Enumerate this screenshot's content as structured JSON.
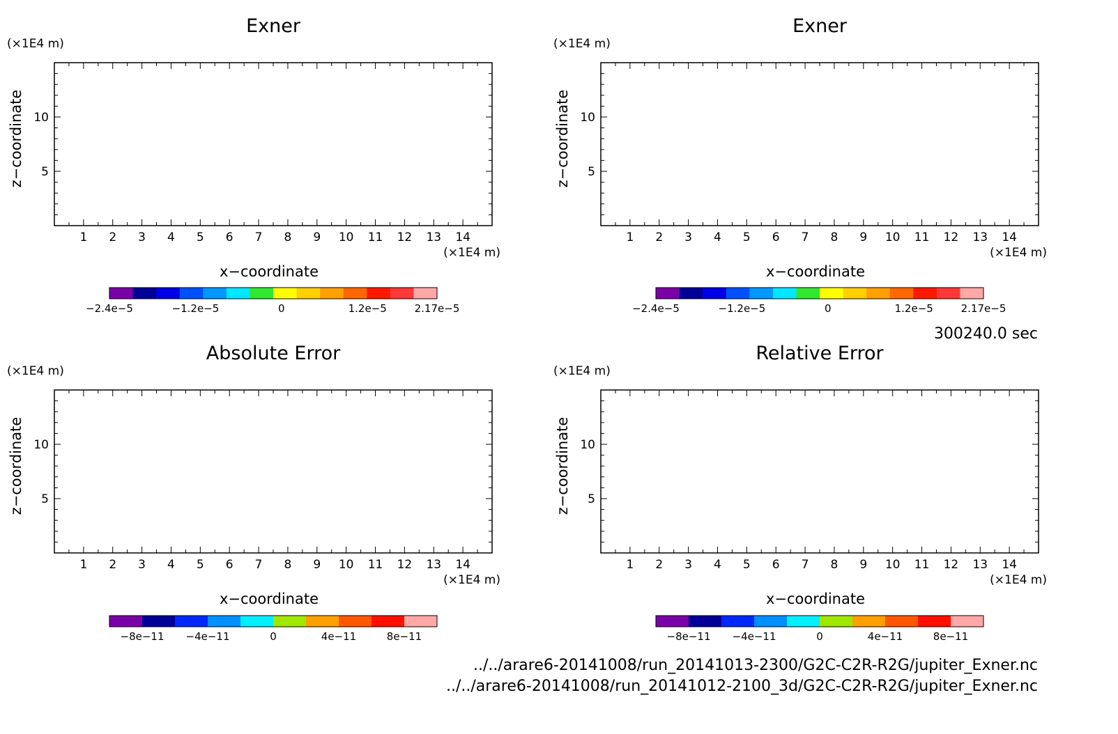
{
  "figure": {
    "time_label": "300240.0 sec",
    "files": [
      "../../arare6-20141008/run_20141013-2300/G2C-C2R-R2G/jupiter_Exner.nc",
      "../../arare6-20141008/run_20141012-2100_3d/G2C-C2R-R2G/jupiter_Exner.nc"
    ]
  },
  "chart_data": [
    {
      "type": "heatmap",
      "title": "Exner",
      "xlabel": "x−coordinate",
      "ylabel": "z−coordinate",
      "x_unit": "(×1E4 m)",
      "y_unit": "(×1E4 m)",
      "xlim": [
        0,
        15
      ],
      "ylim": [
        0,
        15
      ],
      "x_ticks": [
        1,
        2,
        3,
        4,
        5,
        6,
        7,
        8,
        9,
        10,
        11,
        12,
        13,
        14
      ],
      "y_ticks": [
        5,
        10
      ],
      "filled": true,
      "colorbar": {
        "colors": [
          "#7a00a8",
          "#000098",
          "#0000e8",
          "#0050ff",
          "#0098ff",
          "#00e8ff",
          "#30e830",
          "#ffff00",
          "#ffd000",
          "#ffa000",
          "#ff6800",
          "#ff1800",
          "#ff3838",
          "#ffa8a8"
        ],
        "tick_labels": [
          "−2.4e−5",
          "−1.2e−5",
          "0",
          "1.2e−5",
          "2.17e−5"
        ],
        "tick_values": [
          -2.4e-05,
          -1.2e-05,
          0,
          1.2e-05,
          2.17e-05
        ],
        "range": [
          -2.4e-05,
          2.17e-05
        ]
      }
    },
    {
      "type": "heatmap",
      "title": "Exner",
      "xlabel": "x−coordinate",
      "ylabel": "z−coordinate",
      "x_unit": "(×1E4 m)",
      "y_unit": "(×1E4 m)",
      "xlim": [
        0,
        15
      ],
      "ylim": [
        0,
        15
      ],
      "x_ticks": [
        1,
        2,
        3,
        4,
        5,
        6,
        7,
        8,
        9,
        10,
        11,
        12,
        13,
        14
      ],
      "y_ticks": [
        5,
        10
      ],
      "filled": true,
      "colorbar": {
        "colors": [
          "#7a00a8",
          "#000098",
          "#0000e8",
          "#0050ff",
          "#0098ff",
          "#00e8ff",
          "#30e830",
          "#ffff00",
          "#ffd000",
          "#ffa000",
          "#ff6800",
          "#ff1800",
          "#ff3838",
          "#ffa8a8"
        ],
        "tick_labels": [
          "−2.4e−5",
          "−1.2e−5",
          "0",
          "1.2e−5",
          "2.17e−5"
        ],
        "tick_values": [
          -2.4e-05,
          -1.2e-05,
          0,
          1.2e-05,
          2.17e-05
        ],
        "range": [
          -2.4e-05,
          2.17e-05
        ]
      }
    },
    {
      "type": "heatmap",
      "title": "Absolute Error",
      "xlabel": "x−coordinate",
      "ylabel": "z−coordinate",
      "x_unit": "(×1E4 m)",
      "y_unit": "(×1E4 m)",
      "xlim": [
        0,
        15
      ],
      "ylim": [
        0,
        15
      ],
      "x_ticks": [
        1,
        2,
        3,
        4,
        5,
        6,
        7,
        8,
        9,
        10,
        11,
        12,
        13,
        14
      ],
      "y_ticks": [
        5,
        10
      ],
      "filled": false,
      "colorbar": {
        "colors": [
          "#7a00a8",
          "#000098",
          "#0028ff",
          "#0090ff",
          "#00f0ff",
          "#a0e800",
          "#ffa000",
          "#ff5800",
          "#ff1000",
          "#ffa8a8"
        ],
        "tick_labels": [
          "−8e−11",
          "−4e−11",
          "0",
          "4e−11",
          "8e−11"
        ],
        "tick_values": [
          -8e-11,
          -4e-11,
          0,
          4e-11,
          8e-11
        ],
        "range": [
          -1e-10,
          1e-10
        ]
      }
    },
    {
      "type": "heatmap",
      "title": "Relative Error",
      "xlabel": "x−coordinate",
      "ylabel": "z−coordinate",
      "x_unit": "(×1E4 m)",
      "y_unit": "(×1E4 m)",
      "xlim": [
        0,
        15
      ],
      "ylim": [
        0,
        15
      ],
      "x_ticks": [
        1,
        2,
        3,
        4,
        5,
        6,
        7,
        8,
        9,
        10,
        11,
        12,
        13,
        14
      ],
      "y_ticks": [
        5,
        10
      ],
      "filled": false,
      "colorbar": {
        "colors": [
          "#7a00a8",
          "#000098",
          "#0028ff",
          "#0090ff",
          "#00f0ff",
          "#a0e800",
          "#ffa000",
          "#ff5800",
          "#ff1000",
          "#ffa8a8"
        ],
        "tick_labels": [
          "−8e−11",
          "−4e−11",
          "0",
          "4e−11",
          "8e−11"
        ],
        "tick_values": [
          -8e-11,
          -4e-11,
          0,
          4e-11,
          8e-11
        ],
        "range": [
          -1e-10,
          1e-10
        ]
      }
    }
  ]
}
